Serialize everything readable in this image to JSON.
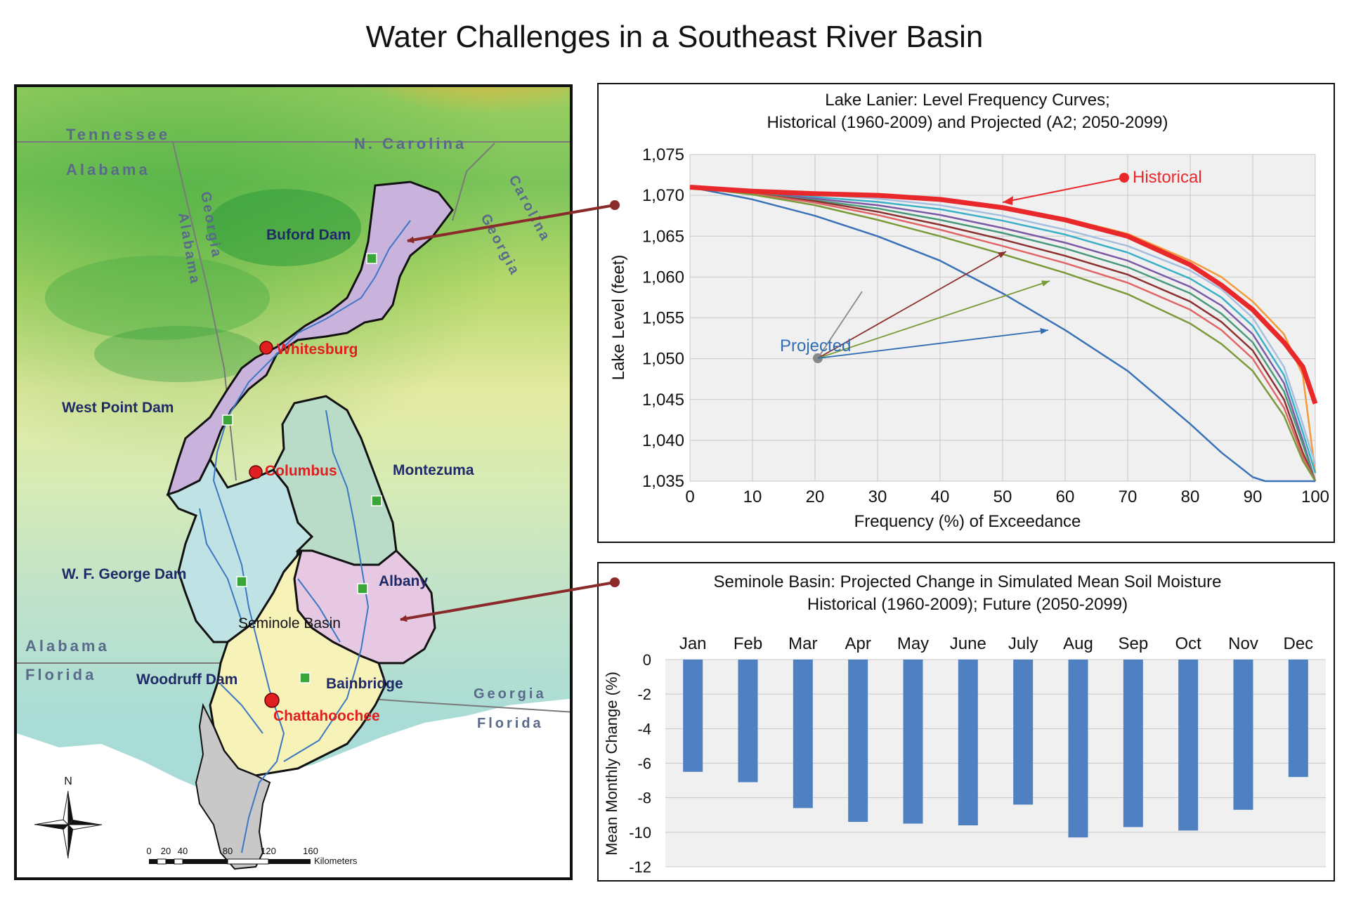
{
  "title": "Water Challenges in a Southeast River Basin",
  "map": {
    "state_labels": {
      "tennessee": "Tennessee",
      "alabama_top": "Alabama",
      "n_carolina": "N. Carolina",
      "carolina": "Carolina",
      "georgia_ne": "Georgia",
      "georgia_v": "Georgia",
      "alabama_v": "Alabama",
      "alabama_bottom": "Alabama",
      "florida_left": "Florida",
      "georgia_se": "Georgia",
      "florida_se": "Florida"
    },
    "dams": {
      "buford": "Buford Dam",
      "west_point": "West Point Dam",
      "wf_george": "W. F. George Dam",
      "woodruff": "Woodruff Dam"
    },
    "gauges": {
      "montezuma": "Montezuma",
      "albany": "Albany",
      "bainbridge": "Bainbridge"
    },
    "cities": {
      "whitesburg": "Whitesburg",
      "columbus": "Columbus",
      "chattahoochee": "Chattahoochee"
    },
    "basin_label": "Seminole Basin",
    "north": "N",
    "scale_ticks": [
      "0",
      "20",
      "40",
      "80",
      "120",
      "160"
    ],
    "scale_unit": "Kilometers",
    "colors": {
      "upper_basin": "#c9b3dc",
      "middle_basin": "#bfe3e4",
      "flint_upper": "#b9dcc8",
      "flint_lower": "#e6c8e2",
      "seminole": "#f7f3b8",
      "apalachicola": "#c8c8c8",
      "river": "#3b78c4",
      "city": "#e02020",
      "gauge": "#3aa63a",
      "label_dark": "#1f2a66"
    }
  },
  "chart_data": [
    {
      "type": "line",
      "title": "Lake Lanier: Level Frequency Curves;",
      "subtitle": "Historical (1960-2009) and Projected (A2; 2050-2099)",
      "xlabel": "Frequency (%) of Exceedance",
      "ylabel": "Lake Level (feet)",
      "xlim": [
        0,
        100
      ],
      "ylim": [
        1035,
        1075
      ],
      "xticks": [
        0,
        10,
        20,
        30,
        40,
        50,
        60,
        70,
        80,
        90,
        100
      ],
      "ytick_labels": [
        "1,035",
        "1,040",
        "1,045",
        "1,050",
        "1,055",
        "1,060",
        "1,065",
        "1,070",
        "1,075"
      ],
      "yticks": [
        1035,
        1040,
        1045,
        1050,
        1055,
        1060,
        1065,
        1070,
        1075
      ],
      "grid": true,
      "annotations": {
        "historical": "Historical",
        "projected": "Projected"
      },
      "colors": {
        "historical": "#e8282b",
        "annotation_historical": "#e8282b",
        "annotation_projected": "#2f6db5"
      },
      "series": [
        {
          "name": "Historical",
          "color": "#e8282b",
          "x": [
            0,
            10,
            20,
            30,
            40,
            50,
            60,
            70,
            80,
            85,
            90,
            95,
            98,
            100
          ],
          "y": [
            1071,
            1070.5,
            1070.2,
            1070,
            1069.5,
            1068.5,
            1067,
            1065,
            1061.5,
            1059,
            1056,
            1052,
            1049,
            1044.5
          ]
        },
        {
          "x": [
            0,
            10,
            20,
            30,
            40,
            50,
            60,
            70,
            80,
            85,
            90,
            95,
            98,
            100
          ],
          "y": [
            1071,
            1070.5,
            1070.2,
            1070,
            1069.5,
            1068.6,
            1067.2,
            1065.3,
            1062,
            1060,
            1057,
            1053,
            1048,
            1036
          ],
          "color": "#f39b3a"
        },
        {
          "x": [
            0,
            10,
            20,
            30,
            40,
            50,
            60,
            70,
            80,
            85,
            90,
            95,
            98,
            100
          ],
          "y": [
            1071,
            1070.5,
            1070.1,
            1069.6,
            1068.8,
            1067.5,
            1065.8,
            1063.8,
            1060.8,
            1058.5,
            1055,
            1049,
            1042,
            1037
          ],
          "color": "#a6bfe0"
        },
        {
          "x": [
            0,
            10,
            20,
            30,
            40,
            50,
            60,
            70,
            80,
            85,
            90,
            95,
            98,
            100
          ],
          "y": [
            1071,
            1070.4,
            1069.8,
            1069.2,
            1068.3,
            1066.9,
            1065.2,
            1063,
            1059.8,
            1057.5,
            1054,
            1048,
            1041,
            1036
          ],
          "color": "#3bb0c8"
        },
        {
          "x": [
            0,
            10,
            20,
            30,
            40,
            50,
            60,
            70,
            80,
            85,
            90,
            95,
            98,
            100
          ],
          "y": [
            1071,
            1070.4,
            1069.6,
            1068.8,
            1067.6,
            1066,
            1064.2,
            1062,
            1058.8,
            1056.5,
            1053,
            1047,
            1040,
            1035
          ],
          "color": "#7b5aa6"
        },
        {
          "x": [
            0,
            10,
            20,
            30,
            40,
            50,
            60,
            70,
            80,
            85,
            90,
            95,
            98,
            100
          ],
          "y": [
            1071,
            1070.3,
            1069.4,
            1068.4,
            1067,
            1065.4,
            1063.5,
            1061.2,
            1058,
            1055.5,
            1052,
            1046,
            1039.5,
            1035
          ],
          "color": "#4a9a7a"
        },
        {
          "x": [
            0,
            10,
            20,
            30,
            40,
            50,
            60,
            70,
            80,
            85,
            90,
            95,
            98,
            100
          ],
          "y": [
            1071,
            1070.2,
            1069.3,
            1068,
            1066.4,
            1064.6,
            1062.6,
            1060.3,
            1057,
            1054.5,
            1051,
            1045,
            1038.5,
            1035
          ],
          "color": "#8f3030"
        },
        {
          "x": [
            0,
            10,
            20,
            30,
            40,
            50,
            60,
            70,
            80,
            85,
            90,
            95,
            98,
            100
          ],
          "y": [
            1071,
            1070.2,
            1069.1,
            1067.6,
            1065.8,
            1063.8,
            1061.7,
            1059.3,
            1056,
            1053.5,
            1050,
            1044,
            1038,
            1035
          ],
          "color": "#e06666"
        },
        {
          "x": [
            0,
            10,
            20,
            30,
            40,
            50,
            60,
            70,
            80,
            85,
            90,
            95,
            98,
            100
          ],
          "y": [
            1071,
            1070.1,
            1068.8,
            1067,
            1065,
            1062.8,
            1060.5,
            1057.9,
            1054.3,
            1051.8,
            1048.5,
            1043,
            1037.5,
            1035
          ],
          "color": "#7a9a3a"
        },
        {
          "x": [
            0,
            10,
            20,
            30,
            40,
            50,
            60,
            70,
            80,
            85,
            90,
            92,
            100
          ],
          "y": [
            1071,
            1069.5,
            1067.5,
            1065,
            1062,
            1058,
            1053.5,
            1048.5,
            1042,
            1038.5,
            1035.5,
            1035,
            1035
          ],
          "color": "#3a72b8"
        }
      ]
    },
    {
      "type": "bar",
      "title": "Seminole Basin: Projected Change in Simulated Mean Soil Moisture",
      "subtitle": "Historical (1960-2009); Future (2050-2099)",
      "xlabel": "",
      "ylabel": "Mean Monthly Change (%)",
      "categories": [
        "Jan",
        "Feb",
        "Mar",
        "Apr",
        "May",
        "June",
        "July",
        "Aug",
        "Sep",
        "Oct",
        "Nov",
        "Dec"
      ],
      "values": [
        -6.5,
        -7.1,
        -8.6,
        -9.4,
        -9.5,
        -9.6,
        -8.4,
        -10.3,
        -9.7,
        -9.9,
        -8.7,
        -6.8
      ],
      "ylim": [
        -12,
        0
      ],
      "yticks": [
        0,
        -2,
        -4,
        -6,
        -8,
        -10,
        -12
      ],
      "grid": true,
      "color": "#4f81c2"
    }
  ]
}
